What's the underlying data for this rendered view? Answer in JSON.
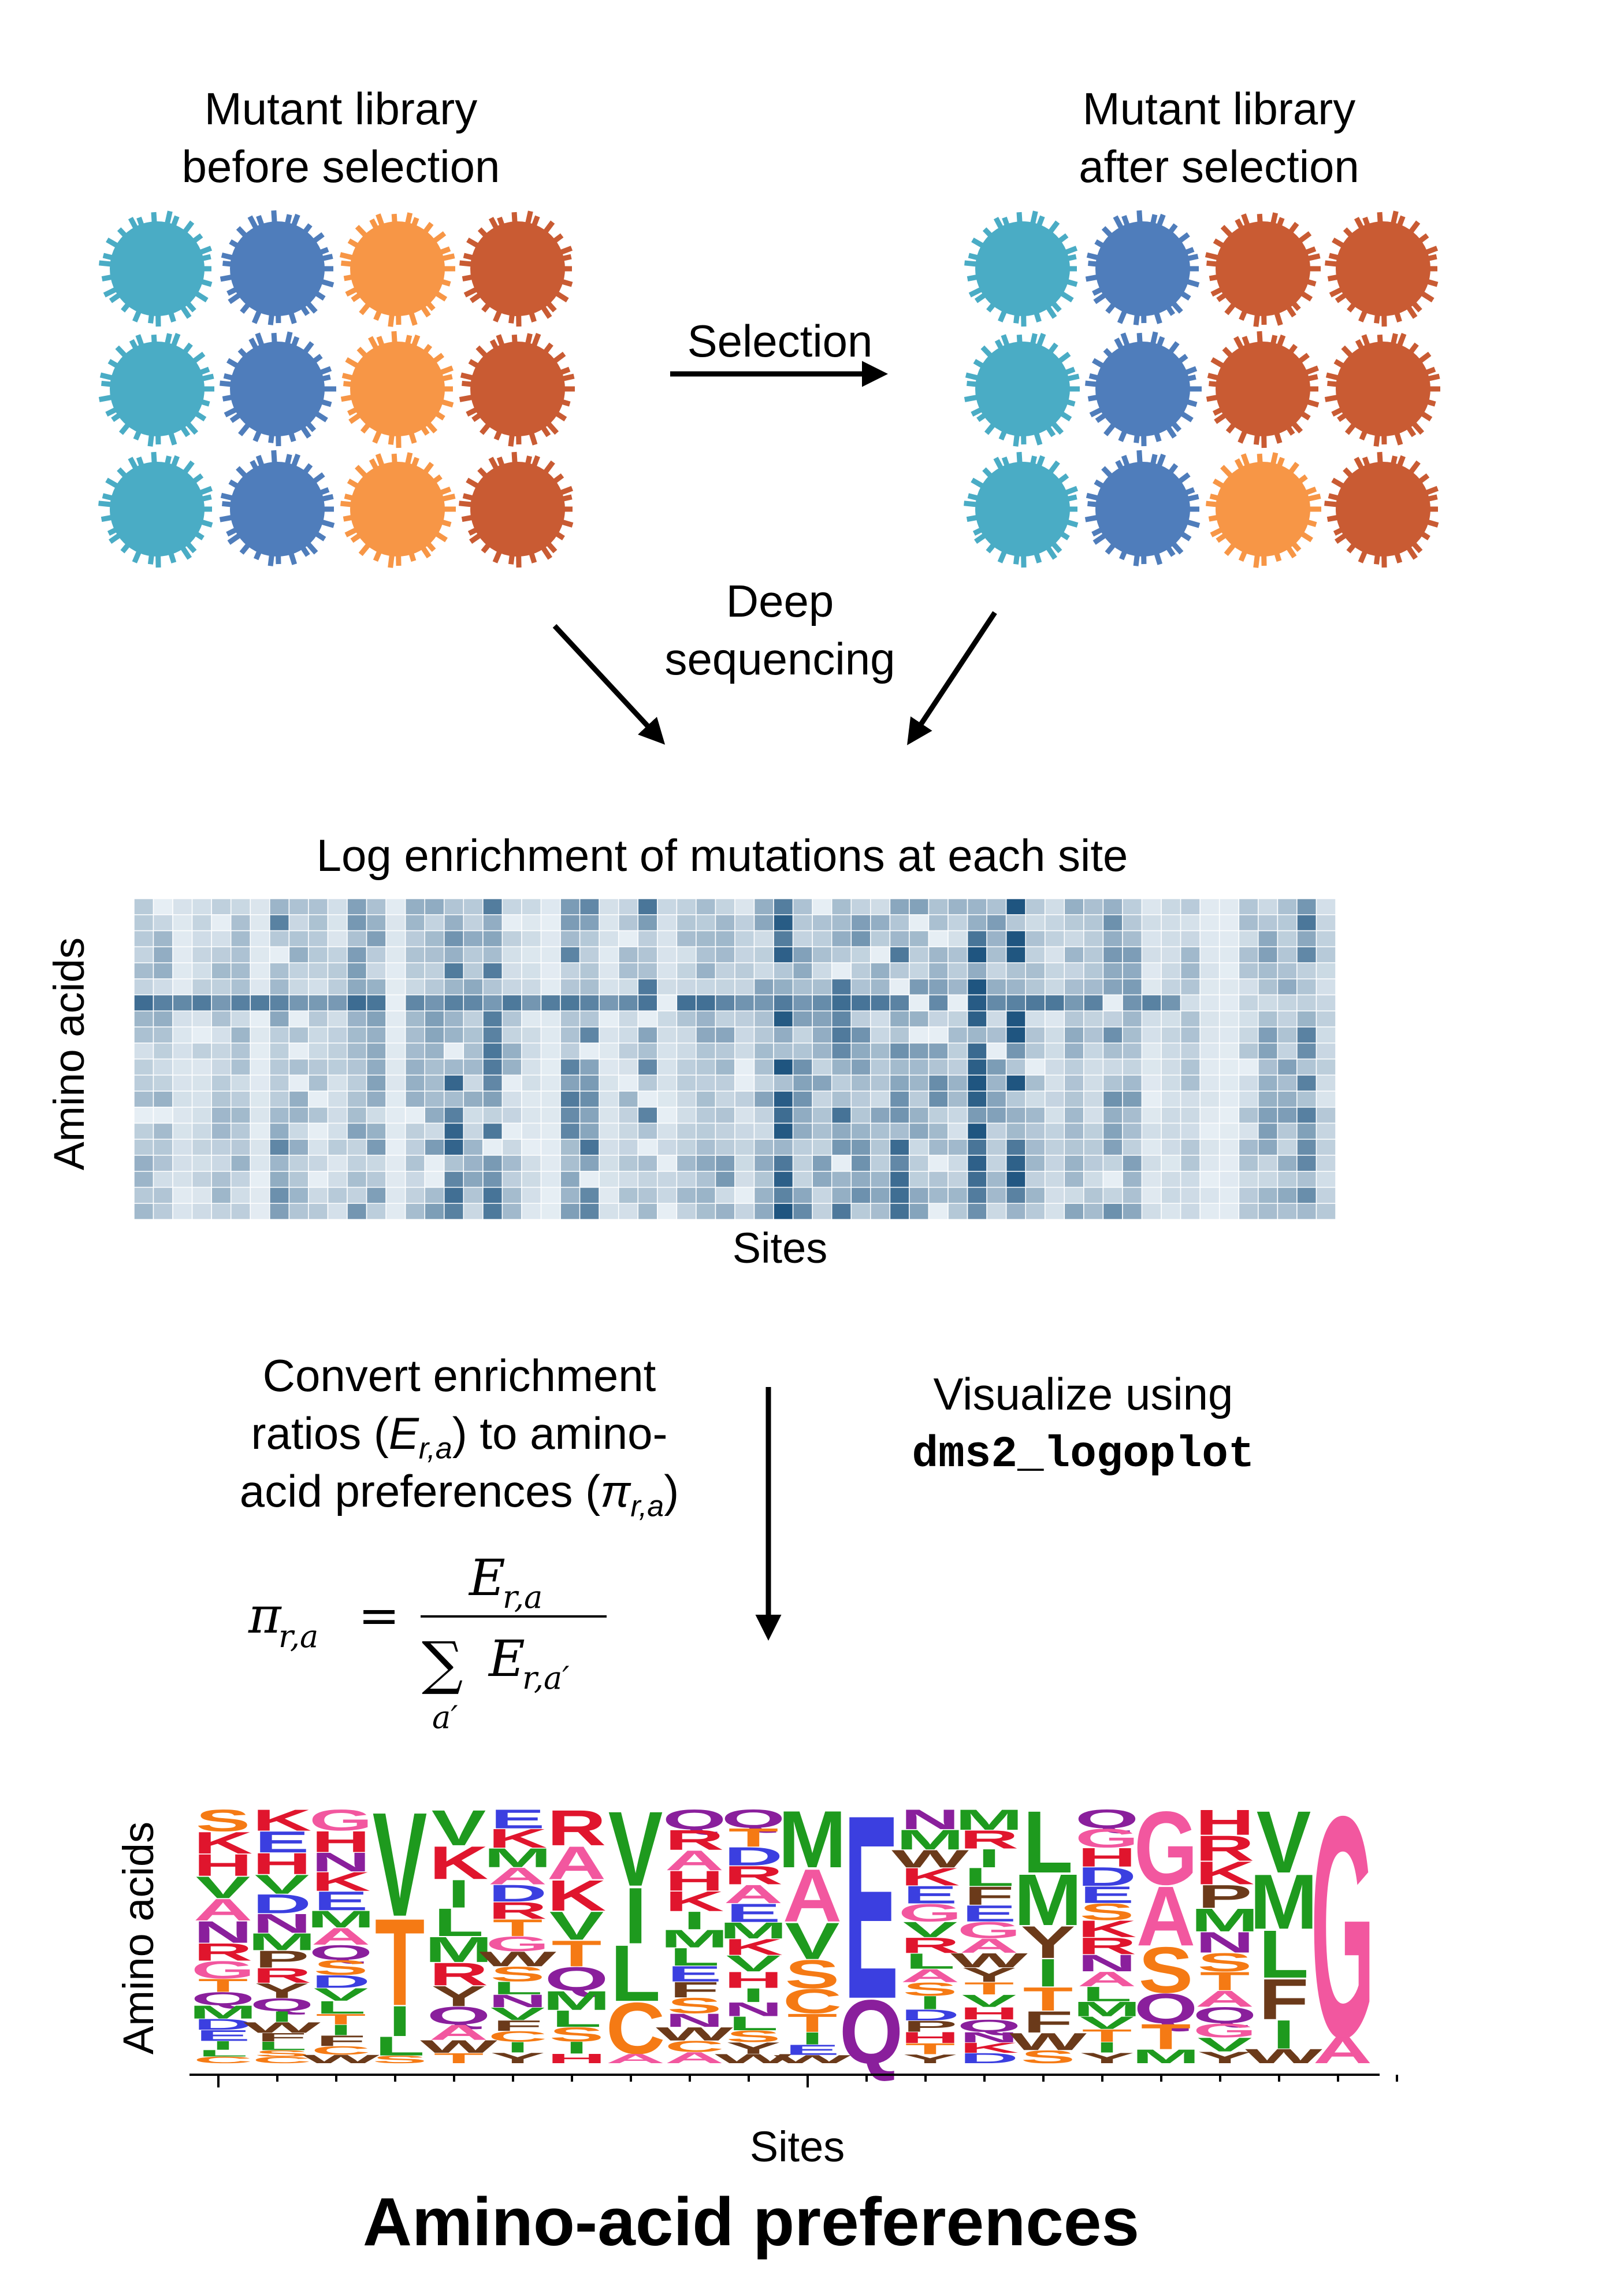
{
  "top": {
    "before_label": [
      "Mutant library",
      "before selection"
    ],
    "after_label": [
      "Mutant library",
      "after selection"
    ],
    "selection_label": "Selection",
    "deep_seq_label": [
      "Deep",
      "sequencing"
    ],
    "colors": {
      "teal": "#4AACC5",
      "blue": "#4F7DBB",
      "orange": "#F79646",
      "rust": "#C95B33"
    },
    "before_grid": [
      [
        "teal",
        "blue",
        "orange",
        "rust"
      ],
      [
        "teal",
        "blue",
        "orange",
        "rust"
      ],
      [
        "teal",
        "blue",
        "orange",
        "rust"
      ]
    ],
    "after_grid": [
      [
        "teal",
        "blue",
        "rust",
        "rust"
      ],
      [
        "teal",
        "blue",
        "rust",
        "rust"
      ],
      [
        "teal",
        "blue",
        "orange",
        "rust"
      ]
    ]
  },
  "heatmap": {
    "title": "Log enrichment of mutations at each site",
    "ylabel": "Amino acids",
    "xlabel": "Sites",
    "color_low": "#E6EEF4",
    "color_high": "#1F5580"
  },
  "convert": {
    "text_line1": "Convert enrichment",
    "text_line2_pre": "ratios (",
    "text_line2_sym": "E",
    "text_line2_sub": "r,a",
    "text_line2_post": ") to amino-",
    "text_line3_pre": "acid preferences (",
    "text_line3_sym": "π",
    "text_line3_sub": "r,a",
    "text_line3_post": ")",
    "formula_lhs": "π",
    "formula_lhs_sub": "r,a",
    "formula_eq": "=",
    "formula_num": "E",
    "formula_num_sub": "r,a",
    "formula_sum": "∑",
    "formula_sum_sub": "a′",
    "formula_den": "E",
    "formula_den_sub": "r,a′",
    "visualize_line1": "Visualize using",
    "visualize_line2": "dms2_logoplot"
  },
  "logo": {
    "ylabel": "Amino acids",
    "xlabel": "Sites",
    "title": "Amino-acid preferences",
    "aa_colors": {
      "A": "#F2579F",
      "C": "#F57A14",
      "D": "#3B3FE0",
      "E": "#3B3FE0",
      "F": "#6B3A1A",
      "G": "#F2579F",
      "H": "#E0152D",
      "I": "#1E9A1E",
      "K": "#E0152D",
      "L": "#1E9A1E",
      "M": "#1E9A1E",
      "N": "#8A1F9C",
      "P": "#6B3A1A",
      "Q": "#8A1F9C",
      "R": "#E0152D",
      "S": "#F57A14",
      "T": "#F57A14",
      "V": "#1E9A1E",
      "W": "#6B3A1A",
      "Y": "#6B3A1A"
    },
    "sites": [
      [
        [
          "S",
          1.0
        ],
        [
          "K",
          1.0
        ],
        [
          "H",
          1.0
        ],
        [
          "V",
          1.0
        ],
        [
          "A",
          1.0
        ],
        [
          "N",
          1.0
        ],
        [
          "R",
          0.8
        ],
        [
          "G",
          0.8
        ],
        [
          "T",
          0.6
        ],
        [
          "Q",
          0.6
        ],
        [
          "M",
          0.6
        ],
        [
          "D",
          0.5
        ],
        [
          "E",
          0.5
        ],
        [
          "I",
          0.4
        ],
        [
          "L",
          0.3
        ],
        [
          "C",
          0.3
        ]
      ],
      [
        [
          "K",
          1.0
        ],
        [
          "E",
          1.0
        ],
        [
          "H",
          1.0
        ],
        [
          "V",
          0.9
        ],
        [
          "D",
          0.9
        ],
        [
          "N",
          0.9
        ],
        [
          "M",
          0.8
        ],
        [
          "P",
          0.8
        ],
        [
          "R",
          0.7
        ],
        [
          "Y",
          0.7
        ],
        [
          "Q",
          0.6
        ],
        [
          "I",
          0.5
        ],
        [
          "W",
          0.5
        ],
        [
          "F",
          0.4
        ],
        [
          "L",
          0.4
        ],
        [
          "S",
          0.3
        ],
        [
          "C",
          0.3
        ]
      ],
      [
        [
          "G",
          1.0
        ],
        [
          "H",
          1.0
        ],
        [
          "N",
          0.9
        ],
        [
          "K",
          0.9
        ],
        [
          "E",
          0.9
        ],
        [
          "M",
          0.8
        ],
        [
          "A",
          0.8
        ],
        [
          "Q",
          0.7
        ],
        [
          "S",
          0.7
        ],
        [
          "D",
          0.6
        ],
        [
          "V",
          0.6
        ],
        [
          "L",
          0.6
        ],
        [
          "T",
          0.5
        ],
        [
          "I",
          0.5
        ],
        [
          "F",
          0.5
        ],
        [
          "C",
          0.4
        ],
        [
          "W",
          0.4
        ]
      ],
      [
        [
          "V",
          5.5
        ],
        [
          "T",
          4.6
        ],
        [
          "I",
          1.6
        ],
        [
          "L",
          1.0
        ],
        [
          "S",
          0.4
        ]
      ],
      [
        [
          "V",
          1.4
        ],
        [
          "K",
          1.3
        ],
        [
          "I",
          1.1
        ],
        [
          "L",
          1.1
        ],
        [
          "M",
          1.0
        ],
        [
          "R",
          0.9
        ],
        [
          "Y",
          0.8
        ],
        [
          "Q",
          0.7
        ],
        [
          "A",
          0.6
        ],
        [
          "W",
          0.5
        ],
        [
          "T",
          0.4
        ]
      ],
      [
        [
          "E",
          0.9
        ],
        [
          "K",
          0.9
        ],
        [
          "M",
          0.9
        ],
        [
          "A",
          0.8
        ],
        [
          "D",
          0.8
        ],
        [
          "R",
          0.8
        ],
        [
          "T",
          0.8
        ],
        [
          "G",
          0.7
        ],
        [
          "W",
          0.7
        ],
        [
          "S",
          0.7
        ],
        [
          "L",
          0.6
        ],
        [
          "N",
          0.6
        ],
        [
          "V",
          0.6
        ],
        [
          "F",
          0.5
        ],
        [
          "C",
          0.5
        ],
        [
          "I",
          0.5
        ],
        [
          "Y",
          0.5
        ]
      ],
      [
        [
          "R",
          1.5
        ],
        [
          "A",
          1.4
        ],
        [
          "K",
          1.3
        ],
        [
          "V",
          1.2
        ],
        [
          "T",
          1.1
        ],
        [
          "Q",
          1.0
        ],
        [
          "M",
          0.8
        ],
        [
          "L",
          0.7
        ],
        [
          "S",
          0.6
        ],
        [
          "I",
          0.5
        ],
        [
          "H",
          0.4
        ]
      ],
      [
        [
          "V",
          3.2
        ],
        [
          "I",
          2.4
        ],
        [
          "L",
          2.4
        ],
        [
          "C",
          2.2
        ],
        [
          "A",
          0.4
        ]
      ],
      [
        [
          "Q",
          0.9
        ],
        [
          "R",
          0.9
        ],
        [
          "A",
          0.9
        ],
        [
          "H",
          0.9
        ],
        [
          "K",
          0.9
        ],
        [
          "I",
          0.8
        ],
        [
          "M",
          0.8
        ],
        [
          "L",
          0.8
        ],
        [
          "E",
          0.7
        ],
        [
          "F",
          0.7
        ],
        [
          "S",
          0.7
        ],
        [
          "N",
          0.6
        ],
        [
          "W",
          0.6
        ],
        [
          "C",
          0.5
        ],
        [
          "A",
          0.5
        ]
      ],
      [
        [
          "Q",
          0.8
        ],
        [
          "T",
          0.8
        ],
        [
          "D",
          0.8
        ],
        [
          "R",
          0.8
        ],
        [
          "A",
          0.8
        ],
        [
          "E",
          0.8
        ],
        [
          "M",
          0.7
        ],
        [
          "K",
          0.7
        ],
        [
          "V",
          0.7
        ],
        [
          "H",
          0.7
        ],
        [
          "I",
          0.6
        ],
        [
          "N",
          0.6
        ],
        [
          "L",
          0.6
        ],
        [
          "S",
          0.5
        ],
        [
          "Y",
          0.5
        ],
        [
          "W",
          0.4
        ]
      ],
      [
        [
          "M",
          2.8
        ],
        [
          "A",
          2.6
        ],
        [
          "V",
          1.8
        ],
        [
          "S",
          1.4
        ],
        [
          "C",
          1.2
        ],
        [
          "T",
          0.9
        ],
        [
          "I",
          0.6
        ],
        [
          "E",
          0.5
        ],
        [
          "W",
          0.4
        ]
      ],
      [
        [
          "E",
          7.5
        ],
        [
          "Q",
          2.6
        ]
      ],
      [
        [
          "N",
          0.9
        ],
        [
          "M",
          0.9
        ],
        [
          "W",
          0.8
        ],
        [
          "K",
          0.8
        ],
        [
          "E",
          0.8
        ],
        [
          "G",
          0.8
        ],
        [
          "V",
          0.7
        ],
        [
          "R",
          0.7
        ],
        [
          "L",
          0.7
        ],
        [
          "A",
          0.6
        ],
        [
          "S",
          0.6
        ],
        [
          "I",
          0.6
        ],
        [
          "D",
          0.5
        ],
        [
          "P",
          0.5
        ],
        [
          "H",
          0.5
        ],
        [
          "T",
          0.5
        ],
        [
          "Y",
          0.4
        ]
      ],
      [
        [
          "M",
          1.0
        ],
        [
          "R",
          0.9
        ],
        [
          "I",
          0.9
        ],
        [
          "L",
          0.9
        ],
        [
          "F",
          0.9
        ],
        [
          "E",
          0.8
        ],
        [
          "G",
          0.8
        ],
        [
          "A",
          0.7
        ],
        [
          "W",
          0.7
        ],
        [
          "Y",
          0.7
        ],
        [
          "T",
          0.6
        ],
        [
          "V",
          0.6
        ],
        [
          "H",
          0.6
        ],
        [
          "Q",
          0.6
        ],
        [
          "N",
          0.5
        ],
        [
          "K",
          0.5
        ],
        [
          "D",
          0.5
        ]
      ],
      [
        [
          "L",
          2.9
        ],
        [
          "M",
          2.4
        ],
        [
          "Y",
          1.5
        ],
        [
          "I",
          1.3
        ],
        [
          "T",
          1.1
        ],
        [
          "F",
          1.0
        ],
        [
          "W",
          0.8
        ],
        [
          "S",
          0.6
        ]
      ],
      [
        [
          "Q",
          0.9
        ],
        [
          "G",
          0.9
        ],
        [
          "H",
          0.9
        ],
        [
          "D",
          0.9
        ],
        [
          "E",
          0.8
        ],
        [
          "S",
          0.8
        ],
        [
          "K",
          0.8
        ],
        [
          "R",
          0.8
        ],
        [
          "N",
          0.8
        ],
        [
          "A",
          0.7
        ],
        [
          "L",
          0.7
        ],
        [
          "M",
          0.7
        ],
        [
          "V",
          0.6
        ],
        [
          "T",
          0.6
        ],
        [
          "I",
          0.5
        ],
        [
          "Y",
          0.5
        ]
      ],
      [
        [
          "G",
          3.2
        ],
        [
          "A",
          2.6
        ],
        [
          "S",
          2.0
        ],
        [
          "Q",
          1.3
        ],
        [
          "T",
          1.1
        ],
        [
          "M",
          0.6
        ]
      ],
      [
        [
          "H",
          1.1
        ],
        [
          "R",
          1.1
        ],
        [
          "K",
          1.0
        ],
        [
          "P",
          1.0
        ],
        [
          "M",
          1.0
        ],
        [
          "N",
          0.9
        ],
        [
          "S",
          0.8
        ],
        [
          "T",
          0.8
        ],
        [
          "A",
          0.7
        ],
        [
          "Q",
          0.7
        ],
        [
          "G",
          0.6
        ],
        [
          "V",
          0.6
        ],
        [
          "Y",
          0.5
        ]
      ],
      [
        [
          "V",
          2.6
        ],
        [
          "M",
          2.3
        ],
        [
          "L",
          2.0
        ],
        [
          "F",
          1.7
        ],
        [
          "I",
          1.2
        ],
        [
          "W",
          0.6
        ]
      ],
      [
        [
          "G",
          8.4
        ],
        [
          "A",
          1.0
        ]
      ]
    ]
  }
}
